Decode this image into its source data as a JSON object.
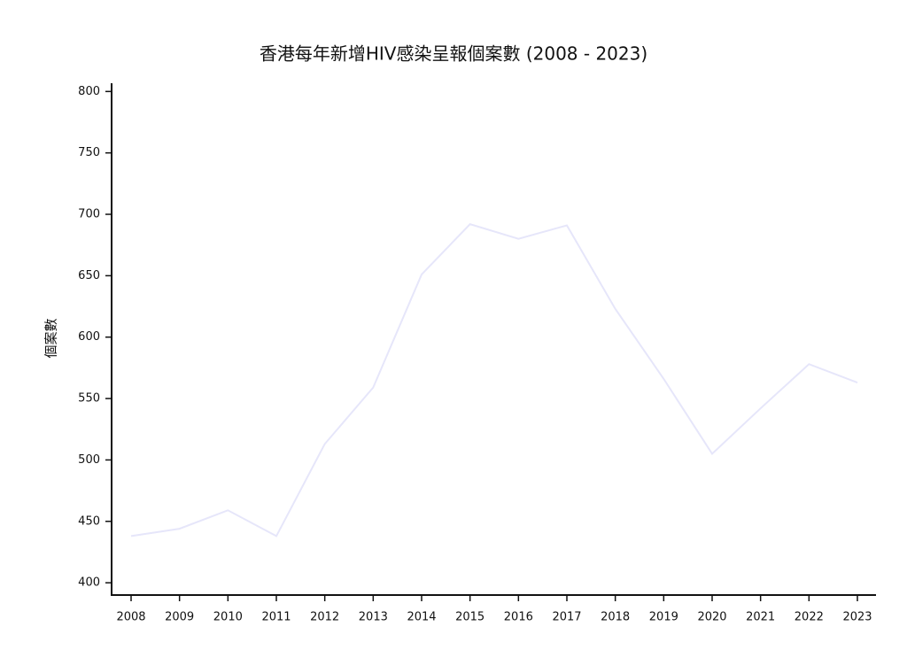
{
  "chart_data": {
    "type": "line",
    "title": "香港每年新增HIV感染呈報個案數 (2008 - 2023)",
    "y_label": "個案數",
    "categories": [
      "2008",
      "2009",
      "2010",
      "2011",
      "2012",
      "2013",
      "2014",
      "2015",
      "2016",
      "2017",
      "2018",
      "2019",
      "2020",
      "2021",
      "2022",
      "2023"
    ],
    "values": [
      438,
      444,
      459,
      438,
      513,
      559,
      651,
      692,
      680,
      691,
      623,
      566,
      505,
      542,
      578,
      563
    ],
    "color": "#e6e6fa",
    "ylim": [
      390,
      806
    ],
    "yticks": [
      400,
      450,
      500,
      550,
      600,
      650,
      700,
      750,
      800
    ],
    "grid": false
  }
}
